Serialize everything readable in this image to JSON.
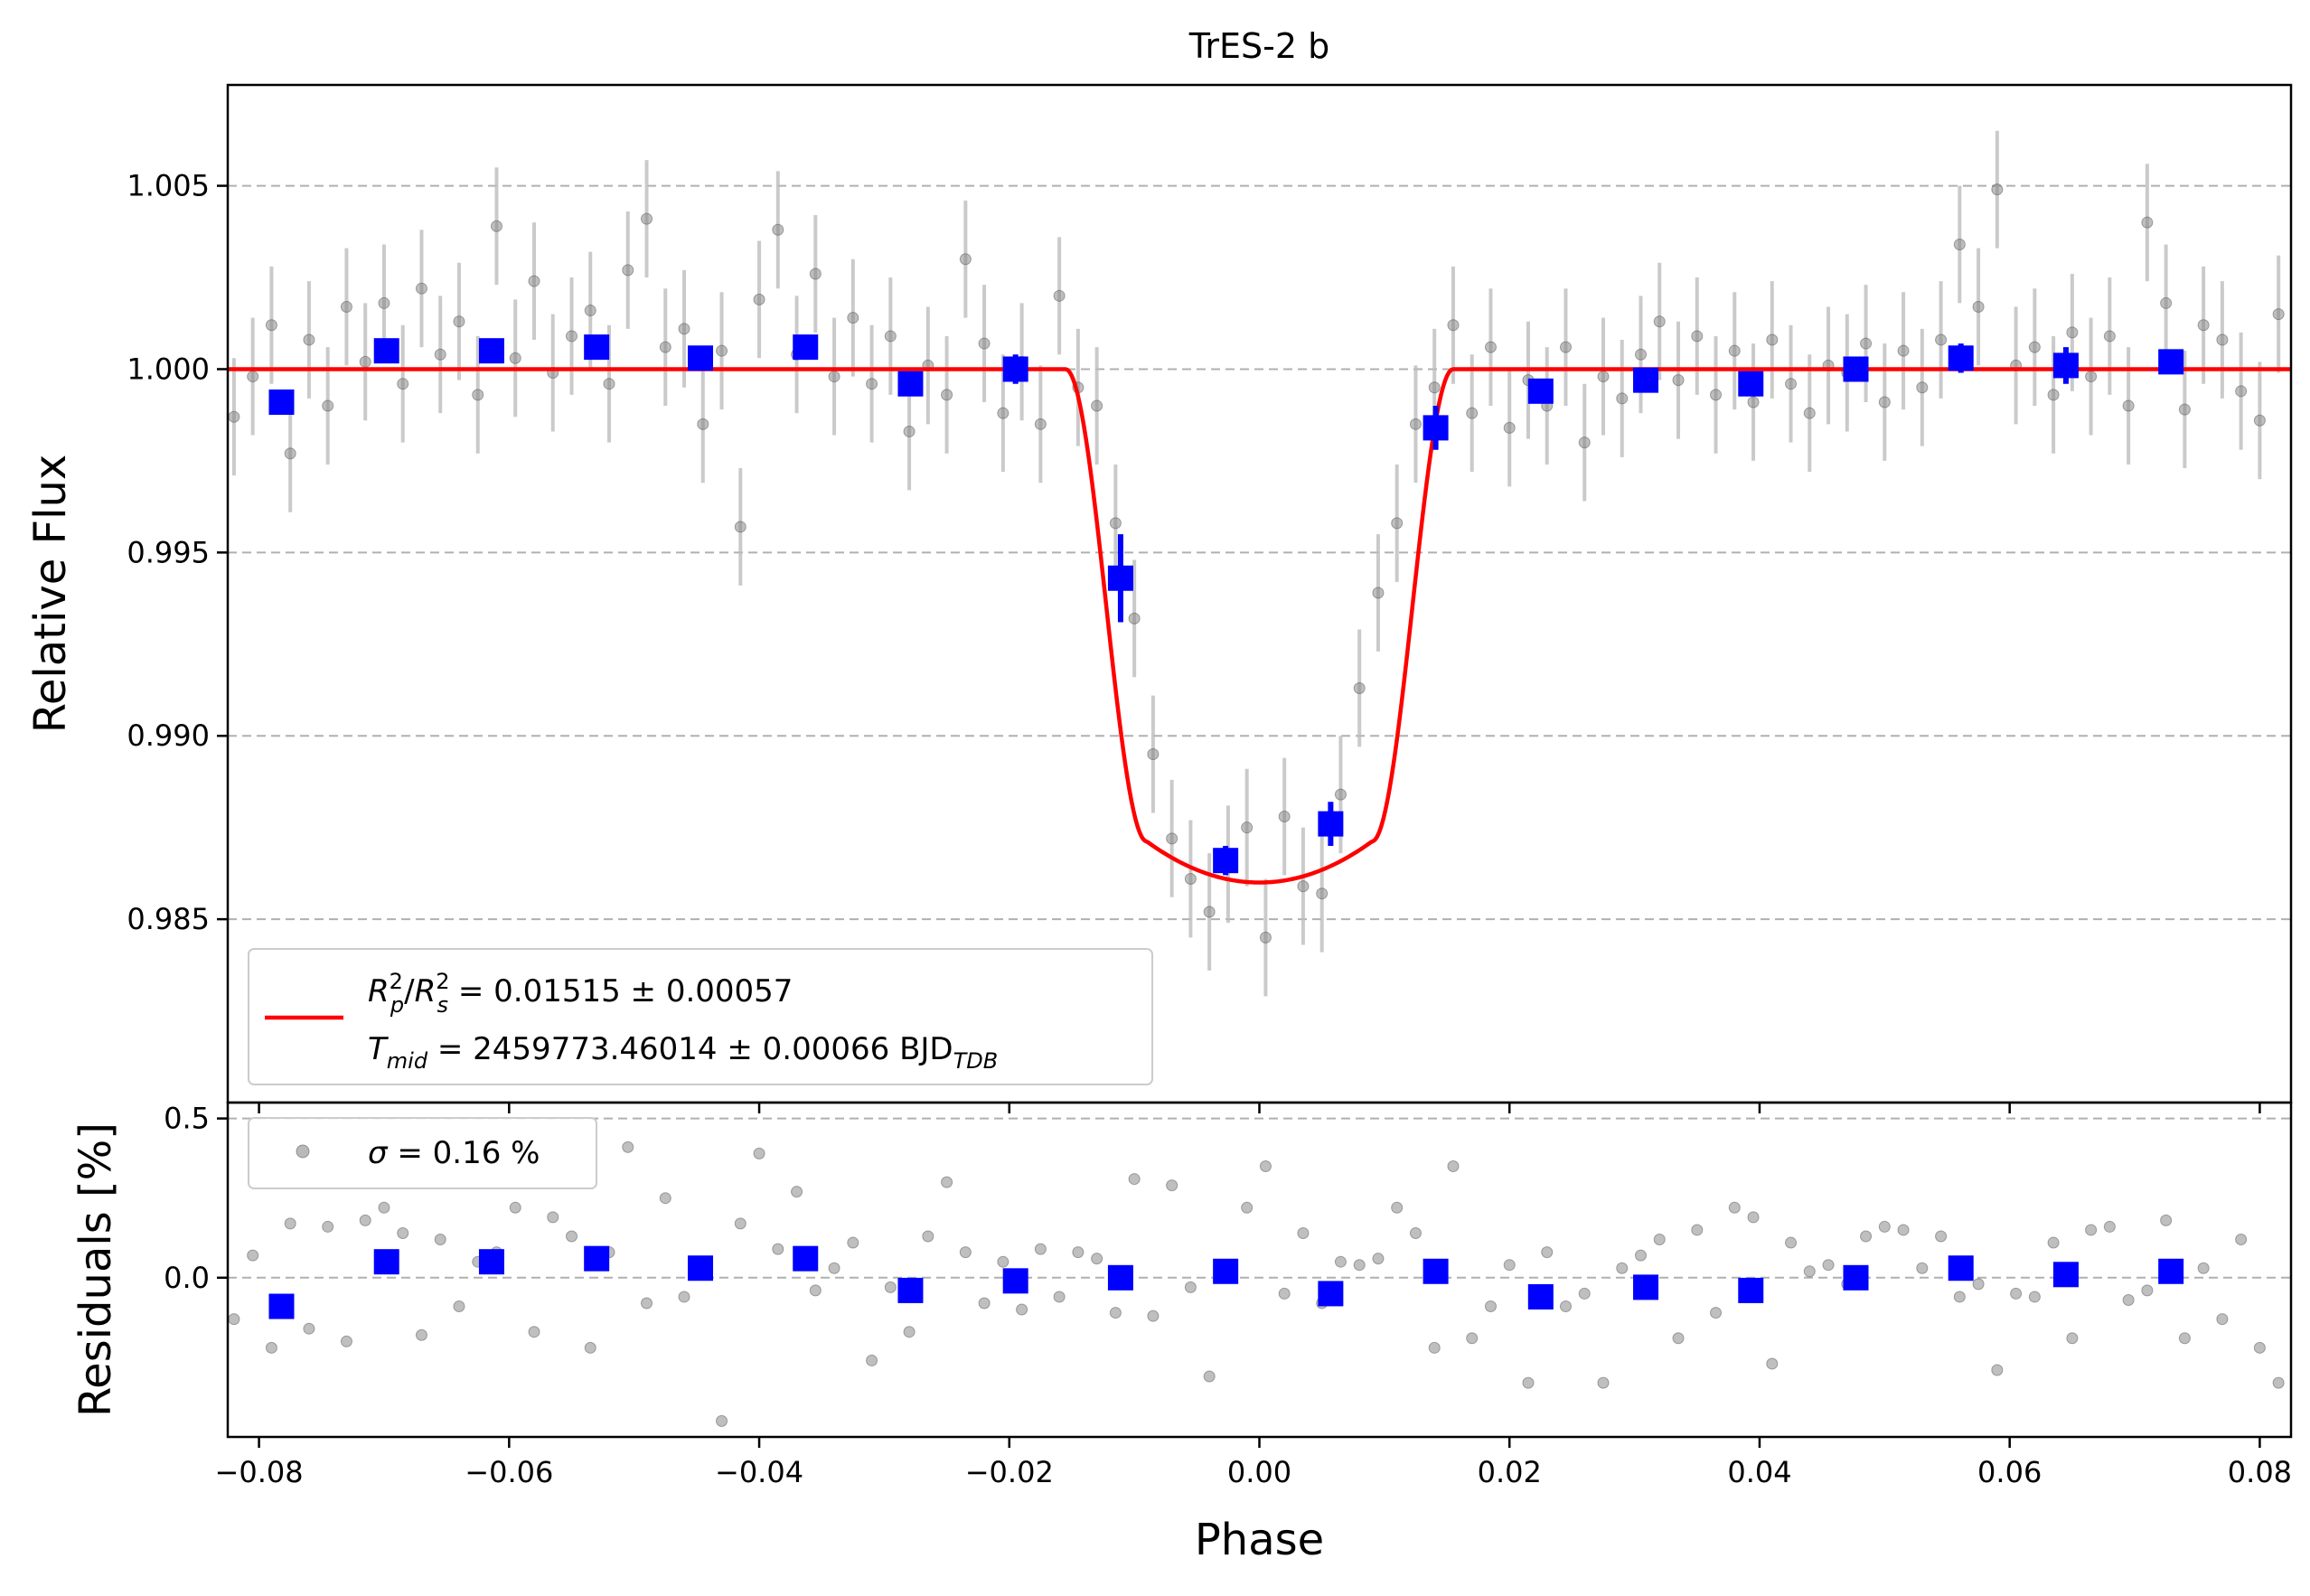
{
  "chart_data": [
    {
      "panel": "main",
      "type": "scatter",
      "title": "TrES-2 b",
      "xlabel": "",
      "ylabel": "Relative Flux",
      "xlim": [
        -0.0825,
        0.0825
      ],
      "ylim": [
        0.98,
        1.00775
      ],
      "grid": "horizontal dashed",
      "legend_placement": "lower-left",
      "yticks": [
        "0.985",
        "0.990",
        "0.995",
        "1.000",
        "1.005"
      ],
      "yticks_values": [
        0.985,
        0.99,
        0.995,
        1.0,
        1.005
      ],
      "legend": {
        "line1_var": "R",
        "line1_sub1": "p",
        "line1_sup1": "2",
        "line1_slash": "/",
        "line1_var2": "R",
        "line1_sub2": "s",
        "line1_sup2": "2",
        "line1_value": " = 0.01515 ± 0.00057",
        "line2_var": "T",
        "line2_sub": "mid",
        "line2_value": " = 2459773.46014 ± 0.00066 BJD",
        "line2_unit_sub": "TDB"
      },
      "model": {
        "name": "transit model",
        "depth": 0.01515,
        "t_mid_phase": 0.0,
        "contact_half_width": 0.0155,
        "ingress_duration": 0.0065,
        "min_flux": 0.986,
        "color": "#ff0000"
      },
      "binned": {
        "color": "#0000ff",
        "x": [
          -0.0782,
          -0.0698,
          -0.0614,
          -0.053,
          -0.0447,
          -0.0363,
          -0.0279,
          -0.0195,
          -0.0111,
          -0.0027,
          0.0057,
          0.0141,
          0.0225,
          0.0309,
          0.0393,
          0.0477,
          0.0561,
          0.0645,
          0.0729
        ],
        "y": [
          0.9991,
          1.0005,
          1.0005,
          1.0006,
          1.0003,
          1.0006,
          0.9996,
          1.0,
          0.9943,
          0.9866,
          0.9876,
          0.9984,
          0.9994,
          0.9997,
          0.9996,
          1.0,
          1.0003,
          1.0001,
          1.0002
        ],
        "err": [
          0.0002,
          0.0003,
          0.0003,
          0.0003,
          0.0003,
          0.0002,
          0.0003,
          0.0004,
          0.0012,
          0.0004,
          0.0006,
          0.0006,
          0.0003,
          0.0003,
          0.0003,
          0.0003,
          0.0004,
          0.0005,
          0.0003
        ]
      },
      "raw": {
        "color": "#808080",
        "note": "",
        "x": [
          -0.082,
          -0.0805,
          -0.079,
          -0.0775,
          -0.076,
          -0.0745,
          -0.073,
          -0.0715,
          -0.07,
          -0.0685,
          -0.067,
          -0.0655,
          -0.064,
          -0.0625,
          -0.061,
          -0.0595,
          -0.058,
          -0.0565,
          -0.055,
          -0.0535,
          -0.052,
          -0.0505,
          -0.049,
          -0.0475,
          -0.046,
          -0.0445,
          -0.043,
          -0.0415,
          -0.04,
          -0.0385,
          -0.037,
          -0.0355,
          -0.034,
          -0.0325,
          -0.031,
          -0.0295,
          -0.028,
          -0.0265,
          -0.025,
          -0.0235,
          -0.022,
          -0.0205,
          -0.019,
          -0.0175,
          -0.016,
          -0.0145,
          -0.013,
          -0.0115,
          -0.01,
          -0.0085,
          -0.007,
          -0.0055,
          -0.004,
          -0.0025,
          -0.001,
          0.0005,
          0.002,
          0.0035,
          0.005,
          0.0065,
          0.008,
          0.0095,
          0.011,
          0.0125,
          0.014,
          0.0155,
          0.017,
          0.0185,
          0.02,
          0.0215,
          0.023,
          0.0245,
          0.026,
          0.0275,
          0.029,
          0.0305,
          0.032,
          0.0335,
          0.035,
          0.0365,
          0.038,
          0.0395,
          0.041,
          0.0425,
          0.044,
          0.0455,
          0.047,
          0.0485,
          0.05,
          0.0515,
          0.053,
          0.0545,
          0.056,
          0.0575,
          0.059,
          0.0605,
          0.062,
          0.0635,
          0.065,
          0.0665,
          0.068,
          0.0695,
          0.071,
          0.0725,
          0.074,
          0.0755,
          0.077,
          0.0785,
          0.08,
          0.0815
        ],
        "y": [
          0.9987,
          0.9998,
          1.0012,
          0.9977,
          1.0008,
          0.999,
          1.0017,
          1.0002,
          1.0018,
          0.9996,
          1.0022,
          1.0004,
          1.0013,
          0.9993,
          1.0039,
          1.0003,
          1.0024,
          0.9999,
          1.0009,
          1.0016,
          0.9996,
          1.0027,
          1.0041,
          1.0006,
          1.0011,
          0.9985,
          1.0005,
          0.9957,
          1.0019,
          1.0038,
          1.0004,
          1.0026,
          0.9998,
          1.0014,
          0.9996,
          1.0009,
          0.9983,
          1.0001,
          0.9993,
          1.003,
          1.0007,
          0.9988,
          1.0002,
          0.9985,
          1.002,
          0.9995,
          0.999,
          0.9958,
          0.9932,
          0.9895,
          0.9872,
          0.9861,
          0.9852,
          0.9865,
          0.9875,
          0.9845,
          0.9878,
          0.9859,
          0.9857,
          0.9884,
          0.9913,
          0.9939,
          0.9958,
          0.9985,
          0.9995,
          1.0012,
          0.9988,
          1.0006,
          0.9984,
          0.9997,
          0.999,
          1.0006,
          0.998,
          0.9998,
          0.9992,
          1.0004,
          1.0013,
          0.9997,
          1.0009,
          0.9993,
          1.0005,
          0.9991,
          1.0008,
          0.9996,
          0.9988,
          1.0001,
          0.9999,
          1.0007,
          0.9991,
          1.0005,
          0.9995,
          1.0008,
          1.0034,
          1.0017,
          1.0049,
          1.0001,
          1.0006,
          0.9993,
          1.001,
          0.9998,
          1.0009,
          0.999,
          1.004,
          1.0018,
          0.9989,
          1.0012,
          1.0008,
          0.9994,
          0.9986,
          1.0015
        ],
        "err": 0.0016
      }
    },
    {
      "panel": "residuals",
      "type": "scatter",
      "xlabel": "Phase",
      "ylabel": "Residuals [%]",
      "xlim": [
        -0.0825,
        0.0825
      ],
      "ylim": [
        -0.5,
        0.55
      ],
      "grid": "horizontal dashed",
      "legend_placement": "upper-left",
      "yticks": [
        "0.0",
        "0.5"
      ],
      "yticks_values": [
        0.0,
        0.5
      ],
      "xticks": [
        "−0.08",
        "−0.06",
        "−0.04",
        "−0.02",
        "0.00",
        "0.02",
        "0.04",
        "0.06",
        "0.08"
      ],
      "xticks_values": [
        -0.08,
        -0.06,
        -0.04,
        -0.02,
        0.0,
        0.02,
        0.04,
        0.06,
        0.08
      ],
      "legend": {
        "var": "σ",
        "value": " = 0.16 %"
      },
      "binned": {
        "color": "#0000ff",
        "x": [
          -0.0782,
          -0.0698,
          -0.0614,
          -0.053,
          -0.0447,
          -0.0363,
          -0.0279,
          -0.0195,
          -0.0111,
          -0.0027,
          0.0057,
          0.0141,
          0.0225,
          0.0309,
          0.0393,
          0.0477,
          0.0561,
          0.0645,
          0.0729
        ],
        "y": [
          -0.09,
          0.05,
          0.05,
          0.06,
          0.03,
          0.06,
          -0.04,
          -0.01,
          0.0,
          0.02,
          -0.05,
          0.02,
          -0.06,
          -0.03,
          -0.04,
          0.0,
          0.03,
          0.01,
          0.02
        ]
      },
      "raw": {
        "color": "#808080",
        "x": [
          -0.082,
          -0.0805,
          -0.079,
          -0.0775,
          -0.076,
          -0.0745,
          -0.073,
          -0.0715,
          -0.07,
          -0.0685,
          -0.067,
          -0.0655,
          -0.064,
          -0.0625,
          -0.061,
          -0.0595,
          -0.058,
          -0.0565,
          -0.055,
          -0.0535,
          -0.052,
          -0.0505,
          -0.049,
          -0.0475,
          -0.046,
          -0.0445,
          -0.043,
          -0.0415,
          -0.04,
          -0.0385,
          -0.037,
          -0.0355,
          -0.034,
          -0.0325,
          -0.031,
          -0.0295,
          -0.028,
          -0.0265,
          -0.025,
          -0.0235,
          -0.022,
          -0.0205,
          -0.019,
          -0.0175,
          -0.016,
          -0.0145,
          -0.013,
          -0.0115,
          -0.01,
          -0.0085,
          -0.007,
          -0.0055,
          -0.004,
          -0.0025,
          -0.001,
          0.0005,
          0.002,
          0.0035,
          0.005,
          0.0065,
          0.008,
          0.0095,
          0.011,
          0.0125,
          0.014,
          0.0155,
          0.017,
          0.0185,
          0.02,
          0.0215,
          0.023,
          0.0245,
          0.026,
          0.0275,
          0.029,
          0.0305,
          0.032,
          0.0335,
          0.035,
          0.0365,
          0.038,
          0.0395,
          0.041,
          0.0425,
          0.044,
          0.0455,
          0.047,
          0.0485,
          0.05,
          0.0515,
          0.053,
          0.0545,
          0.056,
          0.0575,
          0.059,
          0.0605,
          0.062,
          0.0635,
          0.065,
          0.0665,
          0.068,
          0.0695,
          0.071,
          0.0725,
          0.074,
          0.0755,
          0.077,
          0.0785,
          0.08,
          0.0815
        ],
        "y": [
          -0.13,
          0.07,
          -0.22,
          0.17,
          -0.16,
          0.16,
          -0.2,
          0.18,
          0.22,
          0.14,
          -0.18,
          0.12,
          -0.09,
          0.05,
          0.08,
          0.22,
          -0.17,
          0.19,
          0.13,
          -0.22,
          0.08,
          0.41,
          -0.08,
          0.25,
          -0.06,
          0.04,
          -0.45,
          0.17,
          0.39,
          0.09,
          0.27,
          -0.04,
          0.03,
          0.11,
          -0.26,
          -0.03,
          -0.17,
          0.13,
          0.3,
          0.08,
          -0.08,
          0.05,
          -0.1,
          0.09,
          -0.06,
          0.08,
          0.06,
          -0.11,
          0.31,
          -0.12,
          0.29,
          -0.03,
          -0.31,
          0.01,
          0.22,
          0.35,
          -0.05,
          0.14,
          -0.08,
          0.05,
          0.04,
          0.06,
          0.22,
          0.14,
          -0.22,
          0.35,
          -0.19,
          -0.09,
          0.04,
          -0.33,
          0.08,
          -0.09,
          -0.05,
          -0.33,
          0.03,
          0.07,
          0.12,
          -0.19,
          0.15,
          -0.11,
          0.22,
          0.19,
          -0.27,
          0.11,
          0.02,
          0.04,
          -0.02,
          0.13,
          0.16,
          0.15,
          0.03,
          0.13,
          -0.06,
          -0.02,
          -0.29,
          -0.05,
          -0.06,
          0.11,
          -0.19,
          0.15,
          0.16,
          -0.07,
          -0.04,
          0.18,
          -0.19,
          0.03,
          -0.13,
          0.12,
          -0.22,
          -0.33
        ]
      }
    }
  ]
}
